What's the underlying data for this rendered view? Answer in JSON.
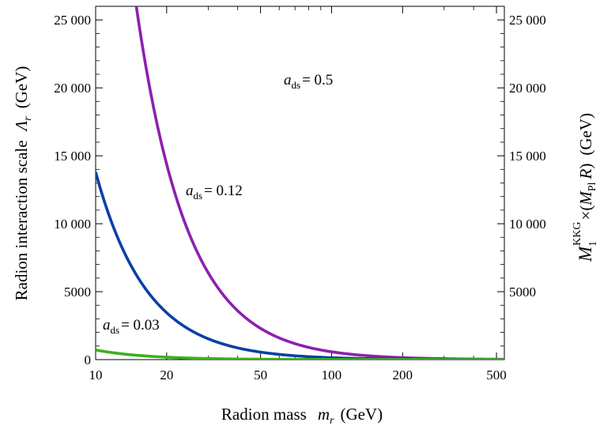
{
  "chart_data": {
    "type": "line",
    "xlabel": "Radion mass",
    "xlabel_symbol": "m",
    "xlabel_symbol_sub": "r",
    "xlabel_unit": "(GeV)",
    "ylabel": "Radion interaction scale",
    "ylabel_symbol": "Λ",
    "ylabel_symbol_sub": "r",
    "ylabel_unit": "(GeV)",
    "ylabel_right": {
      "M": "M",
      "M_sub": "1",
      "M_sup": "KKG",
      "times": "×(",
      "MPl": "M",
      "MPl_sub": "Pl",
      "R": "R",
      "close": ")",
      "unit": "(GeV)"
    },
    "xscale": "log",
    "xlim": [
      10,
      540
    ],
    "ylim": [
      0,
      26000
    ],
    "x_ticks": [
      10,
      20,
      50,
      100,
      200,
      500
    ],
    "x_tick_labels": [
      "10",
      "20",
      "50",
      "100",
      "200",
      "500"
    ],
    "y_ticks": [
      0,
      5000,
      10000,
      15000,
      20000,
      25000
    ],
    "y_tick_labels": [
      "0",
      "5000",
      "10 000",
      "15 000",
      "20 000",
      "25 000"
    ],
    "y_tick_labels_right": [
      "5000",
      "10 000",
      "15 000",
      "20 000",
      "25 000"
    ],
    "grid": false,
    "legend": "none",
    "series": [
      {
        "label_var": "a",
        "label_sub": "ds",
        "label_value": "= 0.5",
        "color": "#8e1fb0",
        "coefficient": 5750000,
        "x_range": [
          10,
          540
        ]
      },
      {
        "label_var": "a",
        "label_sub": "ds",
        "label_value": "= 0.12",
        "color": "#0a3fa8",
        "coefficient": 1380000,
        "x_range": [
          10,
          540
        ]
      },
      {
        "label_var": "a",
        "label_sub": "ds",
        "label_value": "= 0.03",
        "color": "#3bb01a",
        "coefficient": 71000,
        "x_range": [
          10,
          540
        ]
      }
    ]
  }
}
